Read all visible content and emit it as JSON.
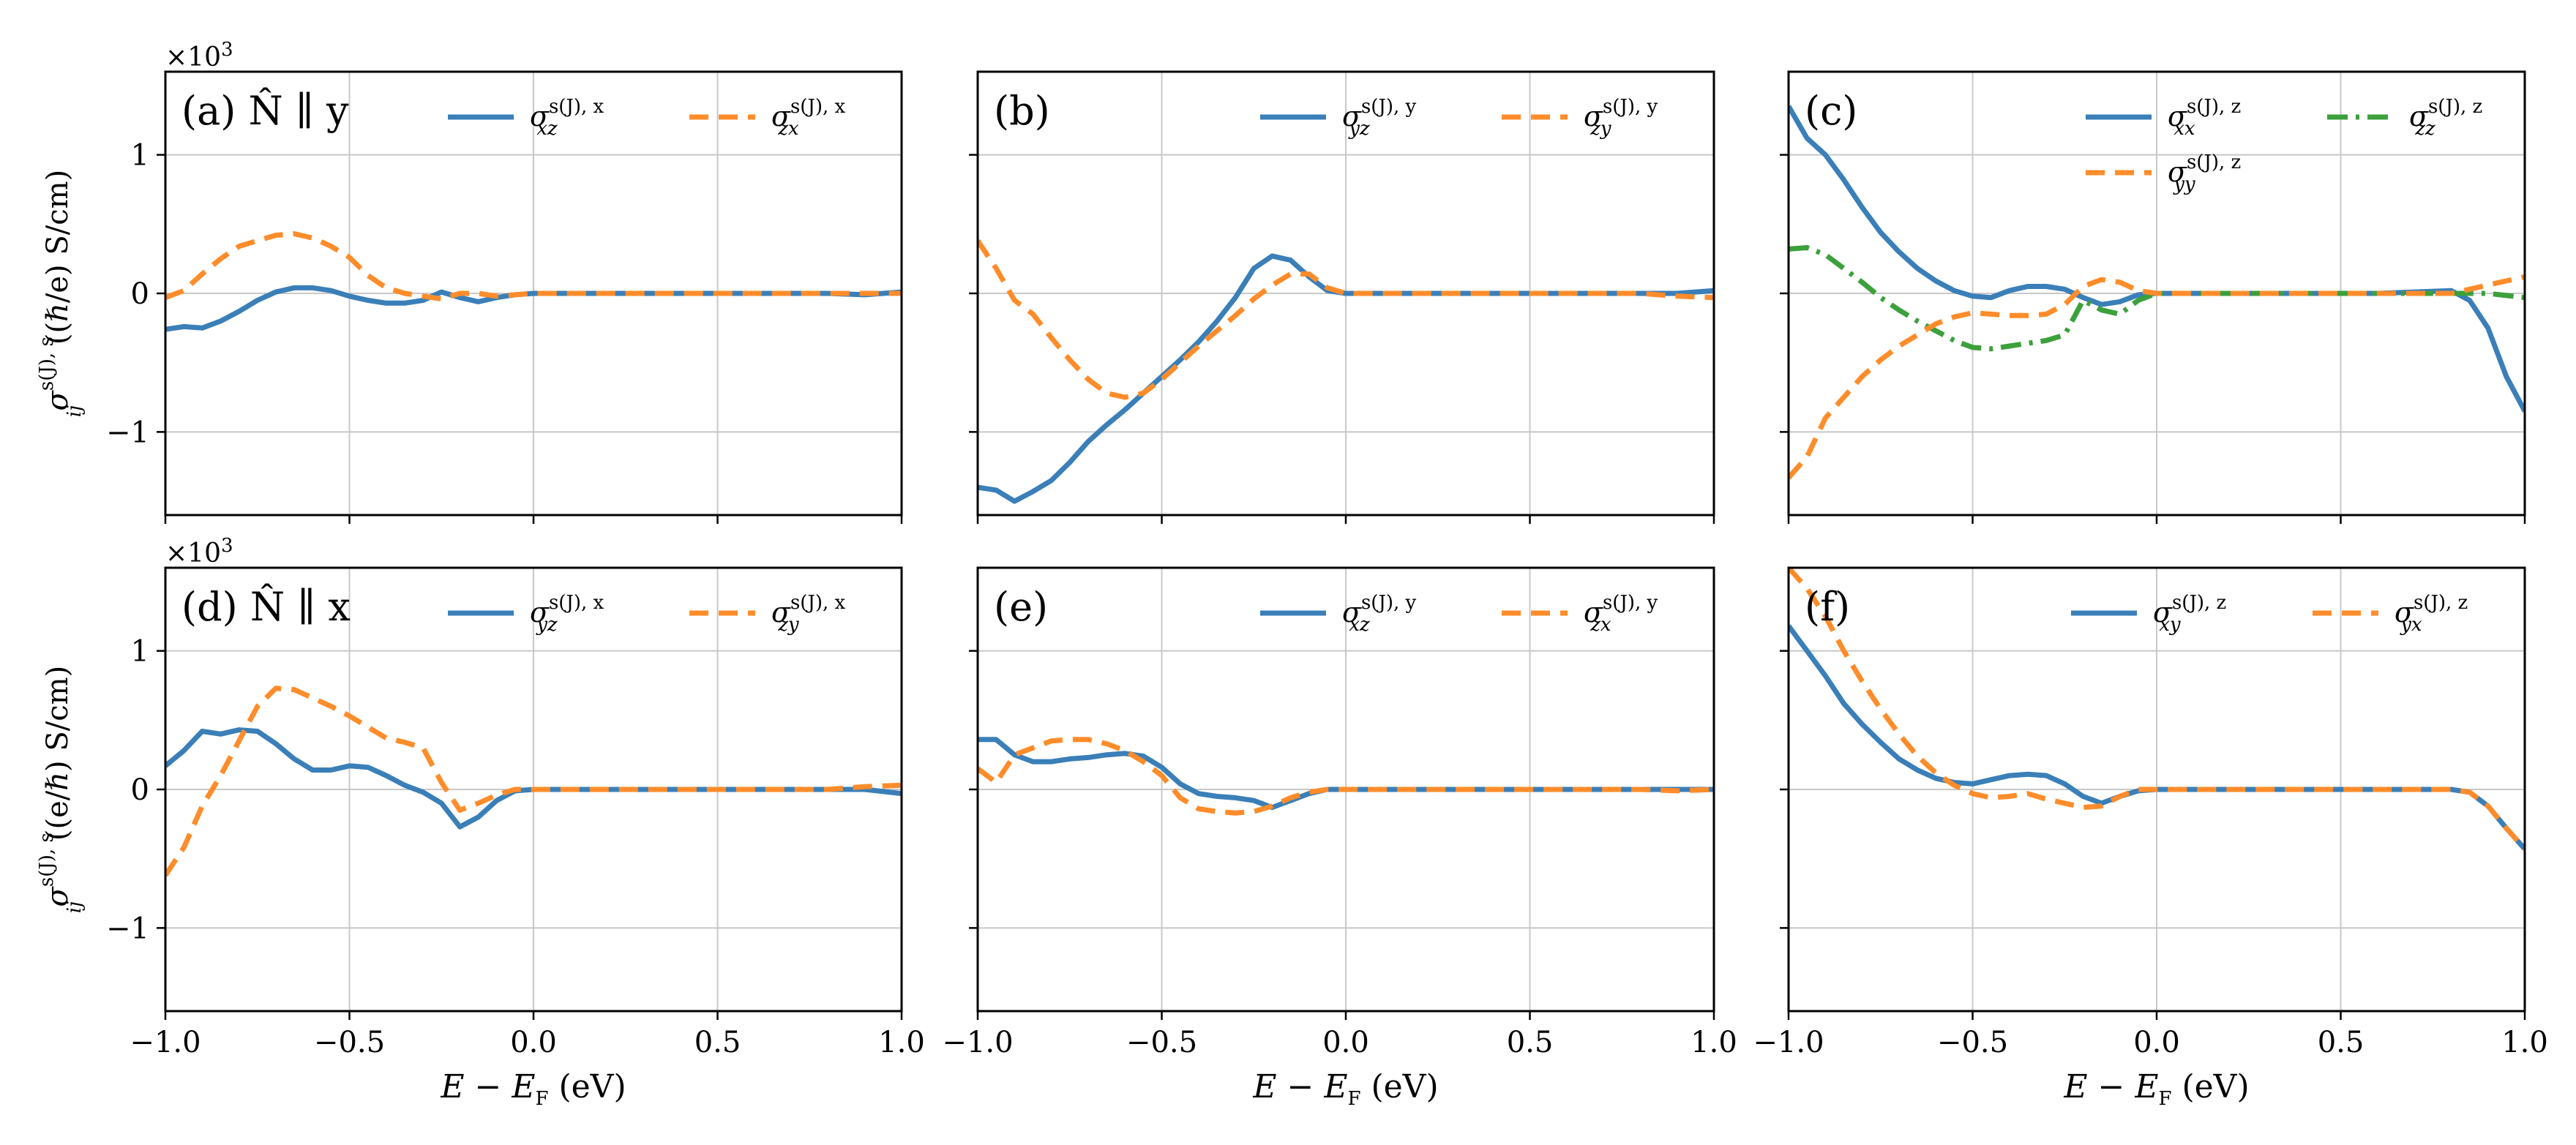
{
  "figure": {
    "x_axis_label": "E − E",
    "x_axis_label_sub": "F",
    "x_axis_label_unit": " (eV)",
    "y_axis_label": "σ",
    "y_axis_label_sup": "s(J), s",
    "y_axis_label_sub": "ij",
    "y_axis_label_rest_top": " ((ℏ/e) S/cm)",
    "y_axis_label_rest_bottom": " ((e/ℏ) S/cm)",
    "exponent_prefix": "×10",
    "exponent_power": "3",
    "colors": {
      "blue": "#3a7fb8",
      "orange": "#ff8c2a",
      "green": "#3ca03c"
    }
  },
  "chart_data": [
    {
      "type": "line",
      "panel": "a",
      "label": "(a) N̂ ∥ y",
      "xlim": [
        -1.0,
        1.0
      ],
      "ylim": [
        -1.6,
        1.6
      ],
      "x_ticks": [
        "−1.0",
        "−0.5",
        "0.0",
        "0.5",
        "1.0"
      ],
      "y_ticks": [
        "−1",
        "0",
        "1"
      ],
      "series": [
        {
          "name": "σ_xz^{s(J),x}",
          "name_main": "σ",
          "name_sup": "s(J), x",
          "name_sub": "xz",
          "style": "solid",
          "color": "#3a7fb8",
          "x": [
            -1.0,
            -0.95,
            -0.9,
            -0.85,
            -0.8,
            -0.75,
            -0.7,
            -0.65,
            -0.6,
            -0.55,
            -0.5,
            -0.45,
            -0.4,
            -0.35,
            -0.3,
            -0.25,
            -0.2,
            -0.15,
            -0.1,
            -0.05,
            0.0,
            0.2,
            0.4,
            0.6,
            0.8,
            0.9,
            1.0
          ],
          "y": [
            -0.26,
            -0.24,
            -0.25,
            -0.2,
            -0.13,
            -0.05,
            0.01,
            0.04,
            0.04,
            0.02,
            -0.02,
            -0.05,
            -0.07,
            -0.07,
            -0.05,
            0.01,
            -0.03,
            -0.06,
            -0.03,
            -0.01,
            0.0,
            0.0,
            0.0,
            0.0,
            0.0,
            -0.01,
            0.01
          ]
        },
        {
          "name": "σ_zx^{s(J),x}",
          "name_main": "σ",
          "name_sup": "s(J), x",
          "name_sub": "zx",
          "style": "dashed",
          "color": "#ff8c2a",
          "x": [
            -1.0,
            -0.95,
            -0.9,
            -0.85,
            -0.8,
            -0.75,
            -0.7,
            -0.65,
            -0.6,
            -0.55,
            -0.5,
            -0.45,
            -0.4,
            -0.35,
            -0.3,
            -0.25,
            -0.2,
            -0.15,
            -0.1,
            -0.05,
            0.0,
            0.2,
            0.4,
            0.6,
            0.8,
            0.9,
            1.0
          ],
          "y": [
            -0.03,
            0.02,
            0.14,
            0.25,
            0.34,
            0.38,
            0.42,
            0.43,
            0.4,
            0.34,
            0.26,
            0.13,
            0.04,
            0.0,
            -0.02,
            -0.04,
            0.0,
            0.0,
            -0.02,
            -0.01,
            0.0,
            0.0,
            0.0,
            0.0,
            0.0,
            0.0,
            0.0
          ]
        }
      ],
      "legend": "top-right"
    },
    {
      "type": "line",
      "panel": "b",
      "label": "(b)",
      "xlim": [
        -1.0,
        1.0
      ],
      "ylim": [
        -1.6,
        1.6
      ],
      "x_ticks": [
        "−1.0",
        "−0.5",
        "0.0",
        "0.5",
        "1.0"
      ],
      "y_ticks": [
        "−1",
        "0",
        "1"
      ],
      "series": [
        {
          "name": "σ_yz^{s(J),y}",
          "name_main": "σ",
          "name_sup": "s(J), y",
          "name_sub": "yz",
          "style": "solid",
          "color": "#3a7fb8",
          "x": [
            -1.0,
            -0.95,
            -0.9,
            -0.85,
            -0.8,
            -0.75,
            -0.7,
            -0.65,
            -0.6,
            -0.55,
            -0.5,
            -0.45,
            -0.4,
            -0.35,
            -0.3,
            -0.25,
            -0.2,
            -0.15,
            -0.1,
            -0.05,
            0.0,
            0.2,
            0.4,
            0.6,
            0.8,
            0.9,
            1.0
          ],
          "y": [
            -1.4,
            -1.42,
            -1.5,
            -1.43,
            -1.35,
            -1.22,
            -1.07,
            -0.95,
            -0.84,
            -0.72,
            -0.6,
            -0.48,
            -0.35,
            -0.2,
            -0.03,
            0.18,
            0.27,
            0.24,
            0.12,
            0.02,
            0.0,
            0.0,
            0.0,
            0.0,
            0.0,
            0.0,
            0.02
          ]
        },
        {
          "name": "σ_zy^{s(J),y}",
          "name_main": "σ",
          "name_sup": "s(J), y",
          "name_sub": "zy",
          "style": "dashed",
          "color": "#ff8c2a",
          "x": [
            -1.0,
            -0.95,
            -0.9,
            -0.85,
            -0.8,
            -0.75,
            -0.7,
            -0.65,
            -0.6,
            -0.55,
            -0.5,
            -0.45,
            -0.4,
            -0.35,
            -0.3,
            -0.25,
            -0.2,
            -0.15,
            -0.1,
            -0.05,
            0.0,
            0.2,
            0.4,
            0.6,
            0.8,
            0.9,
            1.0
          ],
          "y": [
            0.38,
            0.18,
            -0.05,
            -0.15,
            -0.32,
            -0.48,
            -0.62,
            -0.72,
            -0.75,
            -0.72,
            -0.62,
            -0.5,
            -0.38,
            -0.27,
            -0.16,
            -0.04,
            0.06,
            0.14,
            0.14,
            0.04,
            0.0,
            0.0,
            0.0,
            0.0,
            0.0,
            -0.02,
            -0.03
          ]
        }
      ],
      "legend": "top-right"
    },
    {
      "type": "line",
      "panel": "c",
      "label": "(c)",
      "xlim": [
        -1.0,
        1.0
      ],
      "ylim": [
        -1.6,
        1.6
      ],
      "x_ticks": [
        "−1.0",
        "−0.5",
        "0.0",
        "0.5",
        "1.0"
      ],
      "y_ticks": [
        "−1",
        "0",
        "1"
      ],
      "series": [
        {
          "name": "σ_xx^{s(J),z}",
          "name_main": "σ",
          "name_sup": "s(J), z",
          "name_sub": "xx",
          "style": "solid",
          "color": "#3a7fb8",
          "x": [
            -1.0,
            -0.95,
            -0.9,
            -0.85,
            -0.8,
            -0.75,
            -0.7,
            -0.65,
            -0.6,
            -0.55,
            -0.5,
            -0.45,
            -0.4,
            -0.35,
            -0.3,
            -0.25,
            -0.2,
            -0.15,
            -0.1,
            -0.05,
            0.0,
            0.2,
            0.4,
            0.6,
            0.8,
            0.85,
            0.9,
            0.95,
            1.0
          ],
          "y": [
            1.35,
            1.12,
            1.0,
            0.82,
            0.62,
            0.44,
            0.3,
            0.18,
            0.09,
            0.02,
            -0.02,
            -0.03,
            0.02,
            0.05,
            0.05,
            0.03,
            -0.03,
            -0.08,
            -0.06,
            -0.01,
            0.0,
            0.0,
            0.0,
            0.0,
            0.02,
            -0.05,
            -0.25,
            -0.6,
            -0.85
          ]
        },
        {
          "name": "σ_zz^{s(J),z}",
          "name_main": "σ",
          "name_sup": "s(J), z",
          "name_sub": "zz",
          "style": "dashdot",
          "color": "#3ca03c",
          "x": [
            -1.0,
            -0.95,
            -0.9,
            -0.85,
            -0.8,
            -0.75,
            -0.7,
            -0.65,
            -0.6,
            -0.55,
            -0.5,
            -0.45,
            -0.4,
            -0.35,
            -0.3,
            -0.25,
            -0.2,
            -0.15,
            -0.1,
            -0.05,
            0.0,
            0.2,
            0.4,
            0.6,
            0.8,
            0.9,
            1.0
          ],
          "y": [
            0.32,
            0.33,
            0.28,
            0.18,
            0.08,
            -0.03,
            -0.12,
            -0.2,
            -0.27,
            -0.34,
            -0.39,
            -0.4,
            -0.38,
            -0.36,
            -0.34,
            -0.3,
            -0.05,
            -0.12,
            -0.15,
            -0.05,
            0.0,
            0.0,
            0.0,
            0.0,
            0.0,
            0.0,
            -0.03
          ]
        },
        {
          "name": "σ_yy^{s(J),z}",
          "name_main": "σ",
          "name_sup": "s(J), z",
          "name_sub": "yy",
          "style": "dashed",
          "color": "#ff8c2a",
          "x": [
            -1.0,
            -0.95,
            -0.9,
            -0.85,
            -0.8,
            -0.75,
            -0.7,
            -0.65,
            -0.6,
            -0.55,
            -0.5,
            -0.45,
            -0.4,
            -0.35,
            -0.3,
            -0.25,
            -0.2,
            -0.15,
            -0.1,
            -0.05,
            0.0,
            0.2,
            0.4,
            0.6,
            0.8,
            0.9,
            1.0
          ],
          "y": [
            -1.33,
            -1.18,
            -0.9,
            -0.75,
            -0.6,
            -0.48,
            -0.38,
            -0.3,
            -0.22,
            -0.17,
            -0.14,
            -0.15,
            -0.16,
            -0.16,
            -0.15,
            -0.08,
            0.05,
            0.1,
            0.08,
            0.02,
            0.0,
            0.0,
            0.0,
            0.0,
            0.0,
            0.06,
            0.12
          ]
        }
      ],
      "legend": "top-right"
    },
    {
      "type": "line",
      "panel": "d",
      "label": "(d) N̂ ∥ x",
      "xlim": [
        -1.0,
        1.0
      ],
      "ylim": [
        -1.6,
        1.6
      ],
      "x_ticks": [
        "−1.0",
        "−0.5",
        "0.0",
        "0.5",
        "1.0"
      ],
      "y_ticks": [
        "−1",
        "0",
        "1"
      ],
      "series": [
        {
          "name": "σ_yz^{s(J),x}",
          "name_main": "σ",
          "name_sup": "s(J), x",
          "name_sub": "yz",
          "style": "solid",
          "color": "#3a7fb8",
          "x": [
            -1.0,
            -0.95,
            -0.9,
            -0.85,
            -0.8,
            -0.75,
            -0.7,
            -0.65,
            -0.6,
            -0.55,
            -0.5,
            -0.45,
            -0.4,
            -0.35,
            -0.3,
            -0.25,
            -0.2,
            -0.15,
            -0.1,
            -0.05,
            0.0,
            0.2,
            0.4,
            0.6,
            0.8,
            0.9,
            1.0
          ],
          "y": [
            0.17,
            0.28,
            0.42,
            0.4,
            0.43,
            0.42,
            0.33,
            0.22,
            0.14,
            0.14,
            0.17,
            0.16,
            0.1,
            0.03,
            -0.02,
            -0.1,
            -0.27,
            -0.2,
            -0.08,
            -0.01,
            0.0,
            0.0,
            0.0,
            0.0,
            0.0,
            0.0,
            -0.03
          ]
        },
        {
          "name": "σ_zy^{s(J),x}",
          "name_main": "σ",
          "name_sup": "s(J), x",
          "name_sub": "zy",
          "style": "dashed",
          "color": "#ff8c2a",
          "x": [
            -1.0,
            -0.95,
            -0.9,
            -0.85,
            -0.8,
            -0.75,
            -0.7,
            -0.65,
            -0.6,
            -0.55,
            -0.5,
            -0.45,
            -0.4,
            -0.35,
            -0.3,
            -0.25,
            -0.2,
            -0.15,
            -0.1,
            -0.05,
            0.0,
            0.2,
            0.4,
            0.6,
            0.8,
            0.9,
            1.0
          ],
          "y": [
            -0.62,
            -0.42,
            -0.12,
            0.1,
            0.35,
            0.6,
            0.73,
            0.72,
            0.66,
            0.6,
            0.53,
            0.45,
            0.37,
            0.34,
            0.3,
            0.05,
            -0.15,
            -0.1,
            -0.04,
            0.0,
            0.0,
            0.0,
            0.0,
            0.0,
            0.0,
            0.02,
            0.03
          ]
        }
      ],
      "legend": "top-right"
    },
    {
      "type": "line",
      "panel": "e",
      "label": "(e)",
      "xlim": [
        -1.0,
        1.0
      ],
      "ylim": [
        -1.6,
        1.6
      ],
      "x_ticks": [
        "−1.0",
        "−0.5",
        "0.0",
        "0.5",
        "1.0"
      ],
      "y_ticks": [
        "−1",
        "0",
        "1"
      ],
      "series": [
        {
          "name": "σ_xz^{s(J),y}",
          "name_main": "σ",
          "name_sup": "s(J), y",
          "name_sub": "xz",
          "style": "solid",
          "color": "#3a7fb8",
          "x": [
            -1.0,
            -0.95,
            -0.9,
            -0.85,
            -0.8,
            -0.75,
            -0.7,
            -0.65,
            -0.6,
            -0.55,
            -0.5,
            -0.45,
            -0.4,
            -0.35,
            -0.3,
            -0.25,
            -0.2,
            -0.15,
            -0.1,
            -0.05,
            0.0,
            0.2,
            0.4,
            0.6,
            0.8,
            0.9,
            1.0
          ],
          "y": [
            0.36,
            0.36,
            0.25,
            0.2,
            0.2,
            0.22,
            0.23,
            0.25,
            0.26,
            0.24,
            0.16,
            0.04,
            -0.03,
            -0.05,
            -0.06,
            -0.08,
            -0.13,
            -0.08,
            -0.03,
            0.0,
            0.0,
            0.0,
            0.0,
            0.0,
            0.0,
            0.0,
            0.0
          ]
        },
        {
          "name": "σ_zx^{s(J),y}",
          "name_main": "σ",
          "name_sup": "s(J), y",
          "name_sub": "zx",
          "style": "dashed",
          "color": "#ff8c2a",
          "x": [
            -1.0,
            -0.95,
            -0.9,
            -0.85,
            -0.8,
            -0.75,
            -0.7,
            -0.65,
            -0.6,
            -0.55,
            -0.5,
            -0.45,
            -0.4,
            -0.35,
            -0.3,
            -0.25,
            -0.2,
            -0.15,
            -0.1,
            -0.05,
            0.0,
            0.2,
            0.4,
            0.6,
            0.8,
            0.9,
            1.0
          ],
          "y": [
            0.15,
            0.05,
            0.25,
            0.3,
            0.35,
            0.36,
            0.36,
            0.33,
            0.28,
            0.2,
            0.1,
            -0.06,
            -0.14,
            -0.16,
            -0.17,
            -0.16,
            -0.12,
            -0.06,
            -0.02,
            0.0,
            0.0,
            0.0,
            0.0,
            0.0,
            0.0,
            -0.01,
            0.0
          ]
        }
      ],
      "legend": "top-right"
    },
    {
      "type": "line",
      "panel": "f",
      "label": "(f)",
      "xlim": [
        -1.0,
        1.0
      ],
      "ylim": [
        -1.6,
        1.6
      ],
      "x_ticks": [
        "−1.0",
        "−0.5",
        "0.0",
        "0.5",
        "1.0"
      ],
      "y_ticks": [
        "−1",
        "0",
        "1"
      ],
      "series": [
        {
          "name": "σ_xy^{s(J),z}",
          "name_main": "σ",
          "name_sup": "s(J), z",
          "name_sub": "xy",
          "style": "solid",
          "color": "#3a7fb8",
          "x": [
            -1.0,
            -0.95,
            -0.9,
            -0.85,
            -0.8,
            -0.75,
            -0.7,
            -0.65,
            -0.6,
            -0.55,
            -0.5,
            -0.45,
            -0.4,
            -0.35,
            -0.3,
            -0.25,
            -0.2,
            -0.15,
            -0.1,
            -0.05,
            0.0,
            0.2,
            0.4,
            0.6,
            0.8,
            0.85,
            0.9,
            0.95,
            1.0
          ],
          "y": [
            1.18,
            1.0,
            0.82,
            0.62,
            0.47,
            0.34,
            0.22,
            0.14,
            0.08,
            0.05,
            0.04,
            0.07,
            0.1,
            0.11,
            0.1,
            0.04,
            -0.05,
            -0.1,
            -0.05,
            -0.01,
            0.0,
            0.0,
            0.0,
            0.0,
            0.0,
            -0.02,
            -0.12,
            -0.28,
            -0.43
          ]
        },
        {
          "name": "σ_yx^{s(J),z}",
          "name_main": "σ",
          "name_sup": "s(J), z",
          "name_sub": "yx",
          "style": "dashed",
          "color": "#ff8c2a",
          "x": [
            -1.0,
            -0.95,
            -0.9,
            -0.85,
            -0.8,
            -0.75,
            -0.7,
            -0.65,
            -0.6,
            -0.55,
            -0.5,
            -0.45,
            -0.4,
            -0.35,
            -0.3,
            -0.25,
            -0.2,
            -0.15,
            -0.1,
            -0.05,
            0.0,
            0.2,
            0.4,
            0.6,
            0.8,
            0.85,
            0.9,
            0.95,
            1.0
          ],
          "y": [
            1.6,
            1.45,
            1.25,
            1.0,
            0.78,
            0.58,
            0.4,
            0.24,
            0.12,
            0.03,
            -0.03,
            -0.06,
            -0.05,
            -0.03,
            -0.07,
            -0.1,
            -0.13,
            -0.12,
            -0.05,
            0.0,
            0.0,
            0.0,
            0.0,
            0.0,
            0.0,
            -0.02,
            -0.12,
            -0.28,
            -0.43
          ]
        }
      ],
      "legend": "top-right"
    }
  ]
}
